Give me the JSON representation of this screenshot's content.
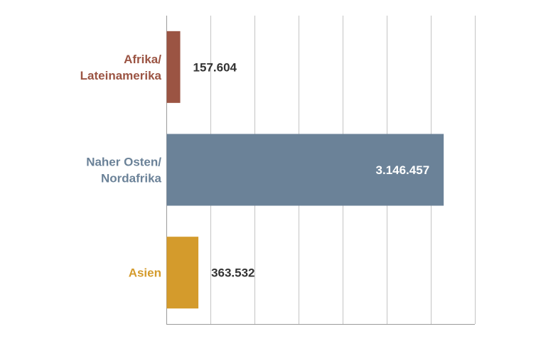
{
  "chart_data": {
    "type": "bar",
    "orientation": "horizontal",
    "title": "",
    "xlabel": "",
    "ylabel": "",
    "xlim": [
      0,
      3500000
    ],
    "grid": true,
    "categories": [
      [
        "Afrika/",
        "Lateinamerika"
      ],
      [
        "Naher Osten/",
        "Nordafrika"
      ],
      [
        "Asien"
      ]
    ],
    "values": [
      157604,
      3146457,
      363532
    ],
    "value_labels": [
      "157.604",
      "3.146.457",
      "363.532"
    ],
    "colors": [
      "#9b5443",
      "#6b8298",
      "#d49b2c"
    ],
    "value_label_colors": [
      "#333333",
      "#ffffff",
      "#333333"
    ],
    "value_label_placement": [
      "outside",
      "inside",
      "outside"
    ]
  }
}
